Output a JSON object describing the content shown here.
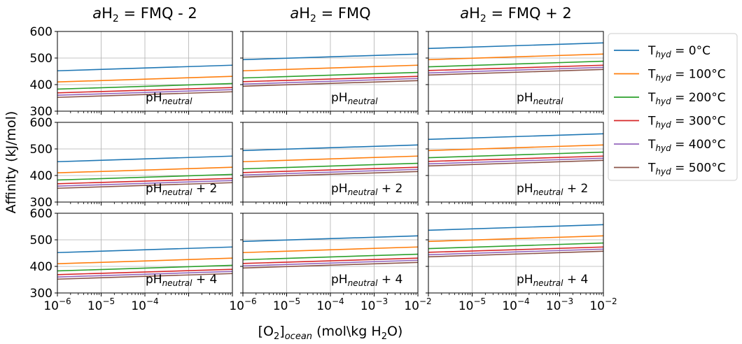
{
  "figure": {
    "ylabel": "Affinity (kJ/mol)",
    "xlabel": "[O₂]ocean (mol\\kg H₂O)",
    "xlabel_main": "[O",
    "xlabel_sub1": "2",
    "xlabel_mid": "]",
    "xlabel_sub2": "ocean",
    "xlabel_end1": " (mol\\kg H",
    "xlabel_sub3": "2",
    "xlabel_end2": "O)",
    "column_titles": [
      {
        "italic": "a",
        "main": "H",
        "sub": "2",
        "rest": " = FMQ - 2"
      },
      {
        "italic": "a",
        "main": "H",
        "sub": "2",
        "rest": " = FMQ"
      },
      {
        "italic": "a",
        "main": "H",
        "sub": "2",
        "rest": " = FMQ + 2"
      }
    ],
    "row_labels": [
      {
        "main": "pH",
        "sub": "neutral",
        "rest": ""
      },
      {
        "main": "pH",
        "sub": "neutral",
        "rest": " + 2"
      },
      {
        "main": "pH",
        "sub": "neutral",
        "rest": " + 4"
      }
    ],
    "y_ticks": [
      "300",
      "400",
      "500",
      "600"
    ],
    "x_tick_base": "10",
    "x_tick_exps": [
      "−6",
      "−5",
      "−4",
      "−3",
      "−2"
    ]
  },
  "chart_data": {
    "type": "line",
    "x_scale": "log",
    "xlim": [
      1e-06,
      0.01
    ],
    "ylim": [
      300,
      600
    ],
    "grid": true,
    "legend_placement": "right",
    "legend": [
      {
        "main": "T",
        "sub": "hyd",
        "rest": " = 0°C",
        "color": "#1f77b4"
      },
      {
        "main": "T",
        "sub": "hyd",
        "rest": " = 100°C",
        "color": "#ff7f0e"
      },
      {
        "main": "T",
        "sub": "hyd",
        "rest": " = 200°C",
        "color": "#2ca02c"
      },
      {
        "main": "T",
        "sub": "hyd",
        "rest": " = 300°C",
        "color": "#d62728"
      },
      {
        "main": "T",
        "sub": "hyd",
        "rest": " = 400°C",
        "color": "#9467bd"
      },
      {
        "main": "T",
        "sub": "hyd",
        "rest": " = 500°C",
        "color": "#8c564b"
      }
    ],
    "x": [
      1e-06,
      0.01
    ],
    "panel_columns": [
      {
        "title": "aH2 = FMQ - 2",
        "series": [
          [
            452,
            473
          ],
          [
            410,
            431
          ],
          [
            383,
            404
          ],
          [
            369,
            389
          ],
          [
            360,
            381
          ],
          [
            352,
            373
          ]
        ]
      },
      {
        "title": "aH2 = FMQ",
        "series": [
          [
            494,
            515
          ],
          [
            452,
            473
          ],
          [
            425,
            446
          ],
          [
            411,
            431
          ],
          [
            402,
            423
          ],
          [
            394,
            415
          ]
        ]
      },
      {
        "title": "aH2 = FMQ + 2",
        "series": [
          [
            536,
            557
          ],
          [
            494,
            515
          ],
          [
            467,
            488
          ],
          [
            453,
            473
          ],
          [
            444,
            465
          ],
          [
            436,
            457
          ]
        ]
      }
    ],
    "rows": [
      "pHneutral",
      "pHneutral + 2",
      "pHneutral + 4"
    ]
  }
}
